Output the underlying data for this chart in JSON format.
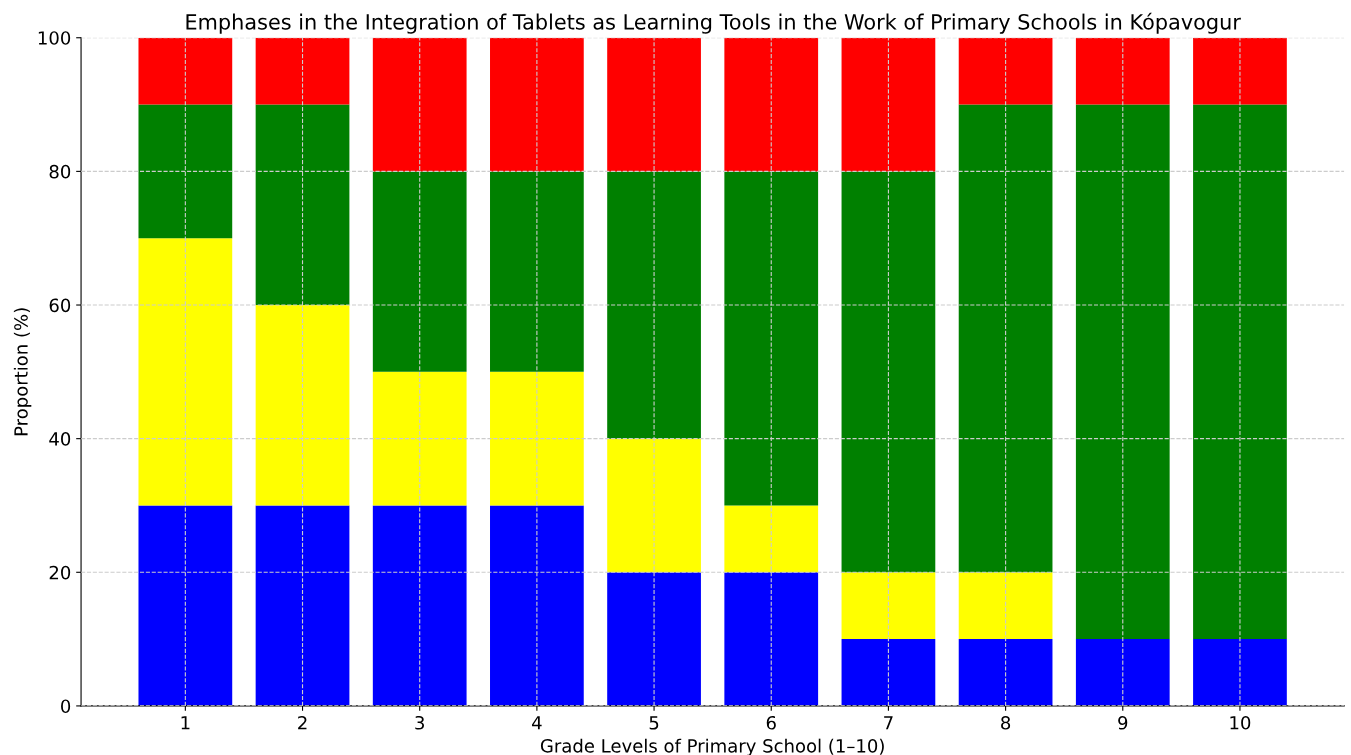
{
  "chart_data": {
    "type": "bar",
    "stacked": true,
    "title": "Emphases in the Integration of Tablets as Learning Tools in the Work of Primary Schools in Kópavogur",
    "xlabel": "Grade Levels of Primary School (1–10)",
    "ylabel": "Proportion (%)",
    "categories": [
      "1",
      "2",
      "3",
      "4",
      "5",
      "6",
      "7",
      "8",
      "9",
      "10"
    ],
    "series": [
      {
        "color": "#0000ff",
        "values": [
          30,
          30,
          30,
          30,
          20,
          20,
          10,
          10,
          10,
          10
        ]
      },
      {
        "color": "#ffff00",
        "values": [
          40,
          30,
          20,
          20,
          20,
          10,
          10,
          10,
          0,
          0
        ]
      },
      {
        "color": "#008000",
        "values": [
          20,
          30,
          30,
          30,
          40,
          50,
          60,
          70,
          80,
          80
        ]
      },
      {
        "color": "#ff0000",
        "values": [
          10,
          10,
          20,
          20,
          20,
          20,
          20,
          10,
          10,
          10
        ]
      }
    ],
    "ylim": [
      0,
      100
    ],
    "yticks": [
      0,
      20,
      40,
      60,
      80,
      100
    ],
    "grid": true
  }
}
